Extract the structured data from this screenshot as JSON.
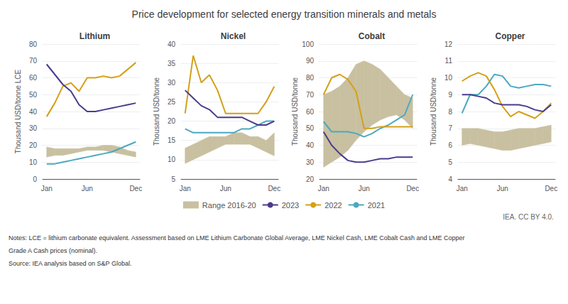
{
  "title": "Price development for selected energy transition minerals and metals",
  "credit": "IEA. CC BY 4.0.",
  "notes": [
    "Notes: LCE = lithium carbonate equivalent. Assessment based on LME Lithium Carbonate Global Average, LME Nickel Cash, LME Cobalt Cash and LME Copper",
    "Grade A Cash prices (nominal).",
    "Source: IEA analysis based on S&P Global."
  ],
  "legend": "bottom",
  "chart_data": [
    {
      "type": "line",
      "title": "Lithium",
      "ylabel": "Thousand USD/tonne LCE",
      "categories": [
        "Jan",
        null,
        null,
        null,
        null,
        "Jun",
        null,
        null,
        null,
        null,
        null,
        "Dec"
      ],
      "ylim": [
        0,
        80
      ],
      "yticks": [
        0,
        10,
        20,
        30,
        40,
        50,
        60,
        70,
        80
      ],
      "grid": true,
      "series": [
        {
          "name": "Range 2016-20",
          "type": "range",
          "color": "#C8C0A0",
          "range_low": [
            13,
            14,
            14,
            15,
            16,
            17,
            17,
            17,
            16,
            15,
            14,
            13
          ],
          "range_high": [
            19,
            18,
            18,
            18,
            18,
            19,
            19,
            20,
            20,
            19,
            17,
            16
          ]
        },
        {
          "name": "2023",
          "type": "line",
          "color": "#4B3B8C",
          "values": [
            68,
            62,
            56,
            52,
            44,
            40,
            40,
            41,
            42,
            43,
            44,
            45
          ]
        },
        {
          "name": "2022",
          "type": "line",
          "color": "#D4A017",
          "values": [
            37,
            45,
            55,
            57,
            52,
            60,
            60,
            61,
            60,
            61,
            65,
            69
          ]
        },
        {
          "name": "2021",
          "type": "line",
          "color": "#4BA8C0",
          "values": [
            9,
            9,
            10,
            11,
            12,
            13,
            14,
            15,
            16,
            18,
            20,
            22
          ]
        }
      ]
    },
    {
      "type": "line",
      "title": "Nickel",
      "ylabel": "Thousand USD/tonne",
      "categories": [
        "Jan",
        null,
        null,
        null,
        null,
        "Jun",
        null,
        null,
        null,
        null,
        null,
        "Dec"
      ],
      "ylim": [
        5,
        40
      ],
      "yticks": [
        5,
        10,
        15,
        20,
        25,
        30,
        35,
        40
      ],
      "grid": true,
      "series": [
        {
          "name": "Range 2016-20",
          "type": "range",
          "color": "#C8C0A0",
          "range_low": [
            9,
            10,
            11,
            12,
            13,
            14,
            14,
            14,
            14,
            13,
            12,
            11
          ],
          "range_high": [
            13,
            14,
            15,
            16,
            16,
            16,
            17,
            17,
            16,
            16,
            15,
            17
          ]
        },
        {
          "name": "2023",
          "type": "line",
          "color": "#4B3B8C",
          "values": [
            28,
            26,
            24,
            23,
            21,
            21,
            21,
            21,
            20,
            19,
            19,
            20
          ]
        },
        {
          "name": "2022",
          "type": "line",
          "color": "#D4A017",
          "values": [
            22,
            37,
            30,
            32,
            28,
            22,
            22,
            22,
            22,
            22,
            25,
            29
          ]
        },
        {
          "name": "2021",
          "type": "line",
          "color": "#4BA8C0",
          "values": [
            18,
            17,
            17,
            17,
            17,
            17,
            17,
            18,
            18,
            19,
            20,
            20
          ]
        }
      ]
    },
    {
      "type": "line",
      "title": "Cobalt",
      "ylabel": "Thousand USD/tonne",
      "categories": [
        "Jan",
        null,
        null,
        null,
        null,
        "Jun",
        null,
        null,
        null,
        null,
        null,
        "Dec"
      ],
      "ylim": [
        20,
        100
      ],
      "yticks": [
        20,
        30,
        40,
        50,
        60,
        70,
        80,
        90,
        100
      ],
      "grid": true,
      "series": [
        {
          "name": "Range 2016-20",
          "type": "range",
          "color": "#C8C0A0",
          "range_low": [
            27,
            30,
            33,
            37,
            43,
            48,
            52,
            55,
            57,
            58,
            55,
            50
          ],
          "range_high": [
            70,
            72,
            75,
            80,
            88,
            90,
            88,
            85,
            80,
            75,
            70,
            68
          ]
        },
        {
          "name": "2023",
          "type": "line",
          "color": "#4B3B8C",
          "values": [
            48,
            40,
            35,
            31,
            30,
            30,
            31,
            32,
            32,
            33,
            33,
            33
          ]
        },
        {
          "name": "2022",
          "type": "line",
          "color": "#D4A017",
          "values": [
            70,
            80,
            82,
            79,
            72,
            50,
            50,
            51,
            51,
            51,
            51,
            51
          ]
        },
        {
          "name": "2021",
          "type": "line",
          "color": "#4BA8C0",
          "values": [
            54,
            48,
            48,
            48,
            47,
            45,
            47,
            50,
            52,
            55,
            58,
            70
          ]
        }
      ]
    },
    {
      "type": "line",
      "title": "Copper",
      "ylabel": "Thousand USD/tonne",
      "categories": [
        "Jan",
        null,
        null,
        null,
        null,
        "Jun",
        null,
        null,
        null,
        null,
        null,
        "Dec"
      ],
      "ylim": [
        4,
        12
      ],
      "yticks": [
        4,
        5,
        6,
        7,
        8,
        9,
        10,
        11,
        12
      ],
      "grid": true,
      "series": [
        {
          "name": "Range 2016-20",
          "type": "range",
          "color": "#C8C0A0",
          "range_low": [
            6.0,
            6.1,
            6.0,
            5.9,
            5.8,
            5.7,
            5.7,
            5.8,
            5.9,
            6.0,
            6.1,
            6.2
          ],
          "range_high": [
            7.0,
            7.0,
            7.0,
            6.9,
            6.8,
            6.8,
            6.9,
            7.0,
            7.0,
            7.0,
            7.1,
            7.2
          ]
        },
        {
          "name": "2023",
          "type": "line",
          "color": "#4B3B8C",
          "values": [
            9.0,
            9.0,
            8.9,
            8.8,
            8.5,
            8.4,
            8.4,
            8.4,
            8.3,
            8.1,
            8.0,
            8.4
          ]
        },
        {
          "name": "2022",
          "type": "line",
          "color": "#D4A017",
          "values": [
            9.8,
            10.1,
            10.3,
            10.1,
            9.3,
            8.3,
            7.7,
            8.0,
            7.8,
            7.6,
            8.0,
            8.5
          ]
        },
        {
          "name": "2021",
          "type": "line",
          "color": "#4BA8C0",
          "values": [
            7.9,
            9.0,
            9.0,
            9.5,
            10.2,
            10.1,
            9.5,
            9.4,
            9.5,
            9.6,
            9.6,
            9.5
          ]
        }
      ]
    }
  ]
}
